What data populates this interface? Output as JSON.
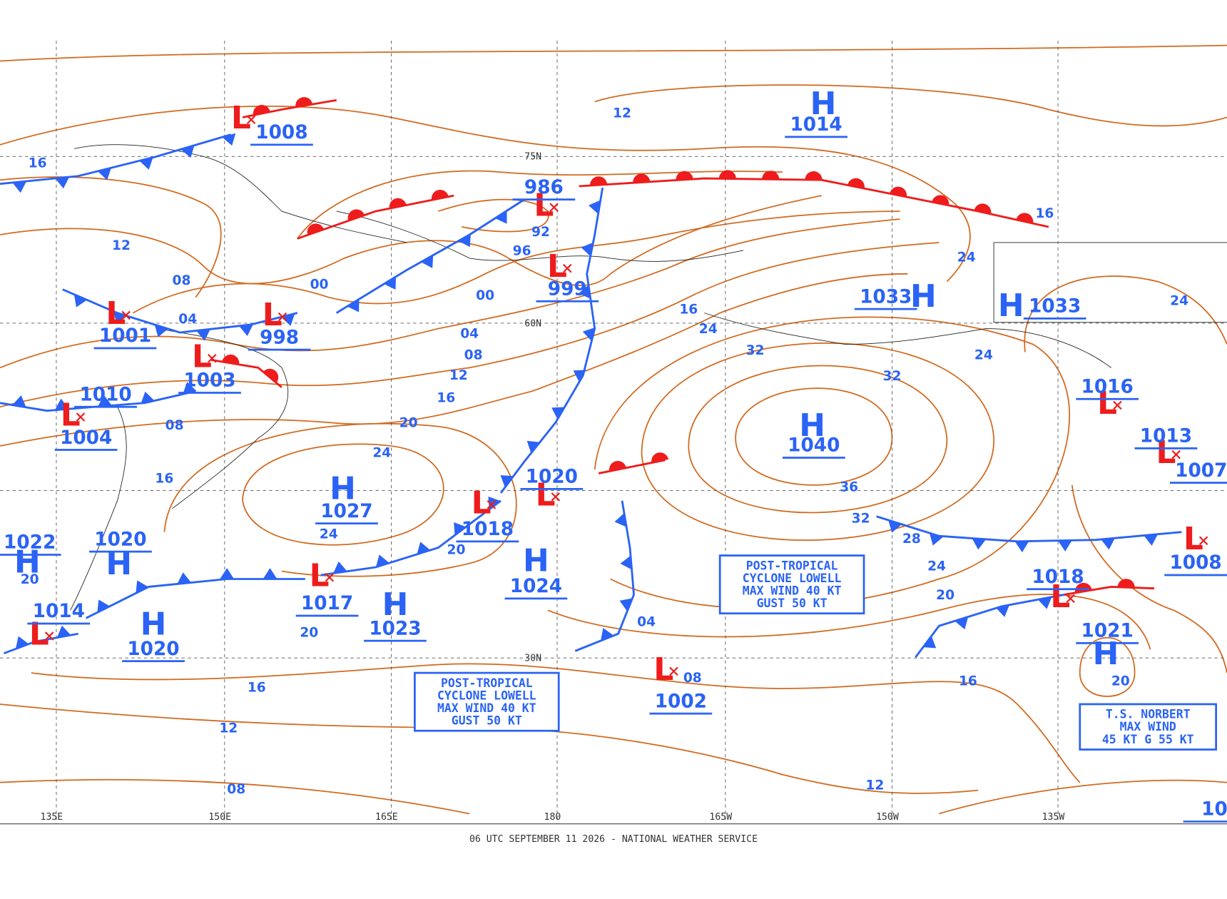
{
  "map": {
    "footer": "06 UTC SEPTEMBER 11 2026 - NATIONAL WEATHER SERVICE",
    "high_symbol": "H",
    "low_symbol": "L",
    "longitudes": [
      "135E",
      "150E",
      "165E",
      "180",
      "165W",
      "150W",
      "135W"
    ],
    "latitudes": [
      "75N",
      "60N",
      "30N"
    ],
    "lows": [
      "1008",
      "986",
      "999",
      "1001",
      "998",
      "1003",
      "1010",
      "1004",
      "1018",
      "1017",
      "1014",
      "1002",
      "1016",
      "1013",
      "1007",
      "1008",
      "1018",
      "1020",
      "10"
    ],
    "highs": [
      "1014",
      "1033",
      "1033",
      "1040",
      "1027",
      "1020",
      "1022",
      "1024",
      "1023",
      "1020",
      "1021"
    ],
    "isobar_labels": [
      "16",
      "12",
      "12",
      "08",
      "00",
      "00",
      "04",
      "04",
      "08",
      "12",
      "16",
      "20",
      "24",
      "24",
      "20",
      "20",
      "16",
      "12",
      "08",
      "08",
      "16",
      "92",
      "96",
      "16",
      "24",
      "32",
      "32",
      "36",
      "32",
      "28",
      "24",
      "20",
      "16",
      "12",
      "20",
      "24",
      "24",
      "24",
      "16",
      "04",
      "08",
      "20"
    ],
    "notes": [
      {
        "lines": [
          "POST-TROPICAL",
          "CYCLONE LOWELL",
          "MAX WIND 40 KT",
          "GUST 50 KT"
        ]
      },
      {
        "lines": [
          "POST-TROPICAL",
          "CYCLONE LOWELL",
          "MAX WIND 40 KT",
          "GUST 50 KT"
        ]
      },
      {
        "lines": [
          "T.S. NORBERT",
          "MAX WIND",
          "45 KT G 55 KT"
        ]
      }
    ]
  }
}
